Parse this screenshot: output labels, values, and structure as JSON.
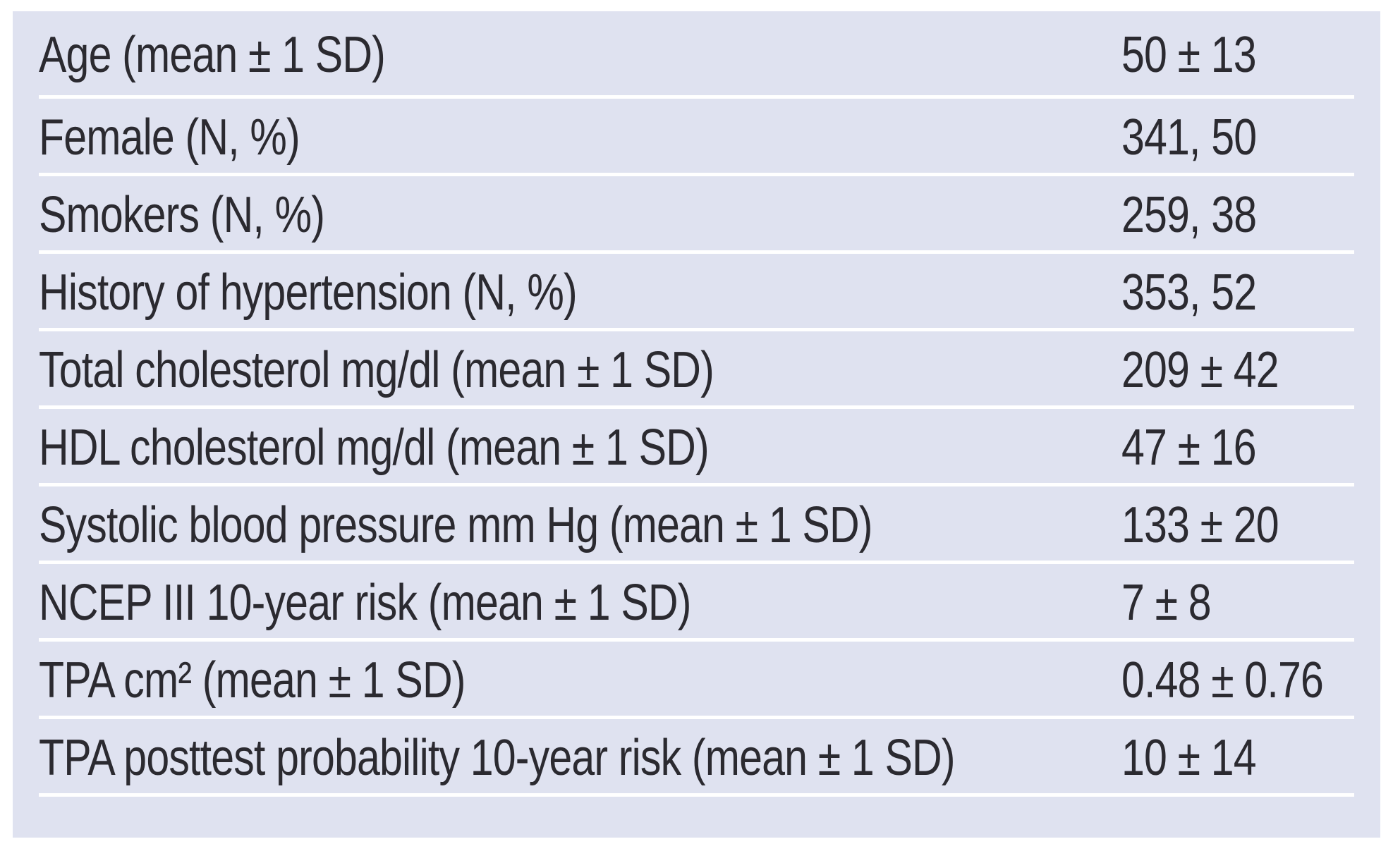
{
  "colors": {
    "page_background": "#ffffff",
    "table_background": "#dfe2f0",
    "separator": "#ffffff",
    "text": "#2b2a30"
  },
  "table": {
    "rows": [
      {
        "label": "Age (mean ± 1 SD)",
        "value": "50 ± 13"
      },
      {
        "label": "Female (N, %)",
        "value": "341, 50"
      },
      {
        "label": "Smokers (N, %)",
        "value": "259, 38"
      },
      {
        "label": "History of hypertension (N, %)",
        "value": "353, 52"
      },
      {
        "label": "Total cholesterol mg/dl (mean ± 1 SD)",
        "value": "209 ± 42"
      },
      {
        "label": "HDL cholesterol mg/dl (mean ± 1 SD)",
        "value": "47 ± 16"
      },
      {
        "label": "Systolic blood pressure mm Hg (mean ± 1 SD)",
        "value": "133 ± 20"
      },
      {
        "label": "NCEP III 10-year risk (mean ± 1 SD)",
        "value": "7 ± 8"
      },
      {
        "label": "TPA cm² (mean ± 1 SD)",
        "value": "0.48 ± 0.76"
      },
      {
        "label": "TPA posttest probability 10-year risk (mean ± 1 SD)",
        "value": "10 ± 14"
      }
    ]
  }
}
